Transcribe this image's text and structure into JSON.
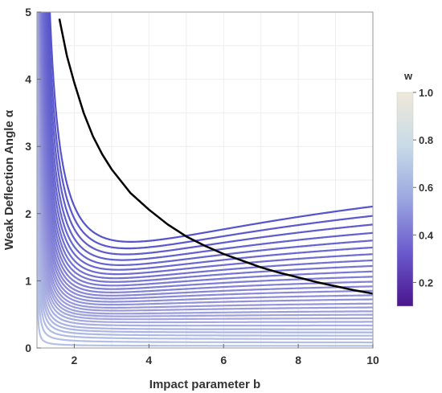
{
  "chart_data": {
    "type": "line",
    "xlabel": "Impact parameter b",
    "ylabel": "Weak Deflection Angle α",
    "xlim": [
      1,
      10
    ],
    "ylim": [
      0,
      5
    ],
    "x_ticks": [
      "2",
      "4",
      "6",
      "8",
      "10"
    ],
    "y_ticks": [
      "0",
      "1",
      "2",
      "3",
      "4",
      "5"
    ],
    "grid": true,
    "legend": {
      "title": "w",
      "placement": "right",
      "ticks": [
        "0.2",
        "0.4",
        "0.6",
        "0.8",
        "1.0"
      ],
      "range": [
        0.1,
        1.0
      ]
    },
    "contours": {
      "family": "alpha = (b - 1) * k / (b - 1 + 2k) + k / (2 (b - 1))",
      "k_values": [
        0.03,
        0.08,
        0.13,
        0.18,
        0.23,
        0.28,
        0.34,
        0.4,
        0.46,
        0.52,
        0.58,
        0.65,
        0.72,
        0.8,
        0.88,
        0.97,
        1.06,
        1.16,
        1.27,
        1.39,
        1.52,
        1.66,
        1.82,
        2.0,
        2.2,
        2.43,
        2.7,
        3.0,
        3.35
      ],
      "colors": [
        "#b4c1e6",
        "#b2bee5",
        "#b0bbe4",
        "#aeb8e4",
        "#acb4e3",
        "#aab1e2",
        "#a8ade1",
        "#a5a9e0",
        "#a2a5df",
        "#9fa1de",
        "#9c9dde",
        "#9999dc",
        "#9595db",
        "#9191da",
        "#8d8dd9",
        "#8a89d8",
        "#8685d7",
        "#8281d6",
        "#7e7dd5",
        "#7a79d4",
        "#7675d3",
        "#7271d2",
        "#6e6cd1",
        "#6a68d0",
        "#6664cf",
        "#6260ce",
        "#5e5ccd",
        "#5a58cc",
        "#5654cb"
      ]
    },
    "highlight_curve": {
      "color": "#000000",
      "x": [
        1.6,
        1.8,
        2.0,
        2.25,
        2.5,
        2.75,
        3.0,
        3.5,
        4.0,
        4.5,
        5.0,
        5.5,
        6.0,
        6.5,
        7.0,
        7.5,
        8.0,
        8.5,
        9.0,
        9.5,
        10.0
      ],
      "y": [
        4.9,
        4.35,
        3.95,
        3.5,
        3.15,
        2.88,
        2.66,
        2.31,
        2.06,
        1.84,
        1.66,
        1.52,
        1.4,
        1.3,
        1.2,
        1.12,
        1.05,
        0.98,
        0.92,
        0.86,
        0.81
      ]
    }
  }
}
